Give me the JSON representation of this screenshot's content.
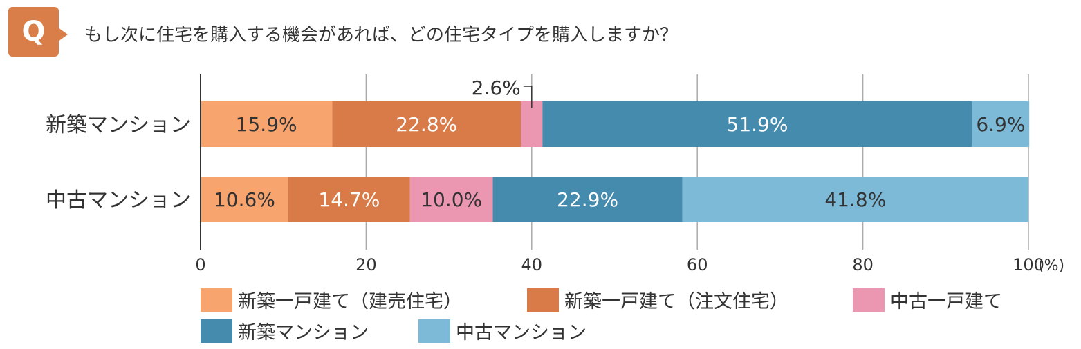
{
  "header": {
    "badge": "Q",
    "question": "もし次に住宅を購入する機会があれば、どの住宅タイプを購入しますか？"
  },
  "chart_data": {
    "type": "bar",
    "orientation": "horizontal",
    "stacked": true,
    "categories": [
      "新築マンション",
      "中古マンション"
    ],
    "series": [
      {
        "name": "新築一戸建て（建売住宅）",
        "values": [
          15.9,
          10.6
        ],
        "color": "#F7A46F",
        "label_color": "#333333"
      },
      {
        "name": "新築一戸建て（注文住宅）",
        "values": [
          22.8,
          14.7
        ],
        "color": "#D97B48",
        "label_color": "#ffffff"
      },
      {
        "name": "中古一戸建て",
        "values": [
          2.6,
          10.0
        ],
        "color": "#EC97B2",
        "label_color": "#333333"
      },
      {
        "name": "新築マンション",
        "values": [
          51.9,
          22.9
        ],
        "color": "#448BAD",
        "label_color": "#ffffff"
      },
      {
        "name": "中古マンション",
        "values": [
          6.9,
          41.8
        ],
        "color": "#7DBAD8",
        "label_color": "#333333"
      }
    ],
    "data_labels": [
      [
        "15.9%",
        "22.8%",
        "2.6%",
        "51.9%",
        "6.9%"
      ],
      [
        "10.6%",
        "14.7%",
        "10.0%",
        "22.9%",
        "41.8%"
      ]
    ],
    "xlim": [
      0,
      100
    ],
    "xticks": [
      "0",
      "20",
      "40",
      "60",
      "80",
      "100"
    ],
    "xunit": "(%)",
    "grid": true,
    "legend": "bottom"
  }
}
